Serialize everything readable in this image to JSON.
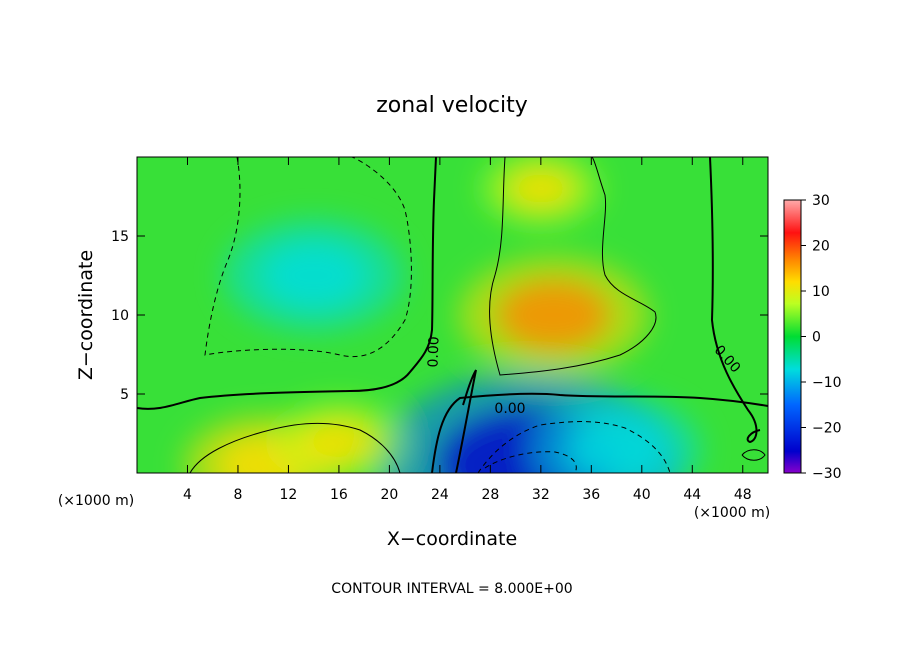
{
  "chart_data": {
    "type": "heatmap",
    "title": "zonal velocity",
    "xlabel": "X−coordinate",
    "ylabel": "Z−coordinate",
    "x_unit_left": "(×1000 m)",
    "x_unit_right": "(×1000 m)",
    "xlim": [
      0,
      50
    ],
    "ylim": [
      0,
      20
    ],
    "x_ticks": [
      4,
      8,
      12,
      16,
      20,
      24,
      28,
      32,
      36,
      40,
      44,
      48
    ],
    "y_ticks": [
      5,
      10,
      15
    ],
    "colorbar": {
      "range": [
        -30,
        30
      ],
      "ticks": [
        30,
        20,
        10,
        0,
        -10,
        -20,
        -30
      ],
      "tick_labels": [
        "30",
        "20",
        "10",
        "0",
        "−10",
        "−20",
        "−30"
      ]
    },
    "contour_interval": 8.0,
    "contour_labels": [
      "0.00",
      "0.00",
      "0.00"
    ],
    "footnote": "CONTOUR INTERVAL = 8.000E+00",
    "features": [
      {
        "x": 14,
        "z": 12.5,
        "value": -14
      },
      {
        "x": 33,
        "z": 10,
        "value": 15
      },
      {
        "x": 31,
        "z": 0.5,
        "value": -26
      },
      {
        "x": 10,
        "z": 0.5,
        "value": 12
      },
      {
        "x": 16,
        "z": 2,
        "value": 9
      },
      {
        "x": 38,
        "z": 1.5,
        "value": -13
      },
      {
        "x": 32,
        "z": 18,
        "value": 8
      }
    ]
  }
}
